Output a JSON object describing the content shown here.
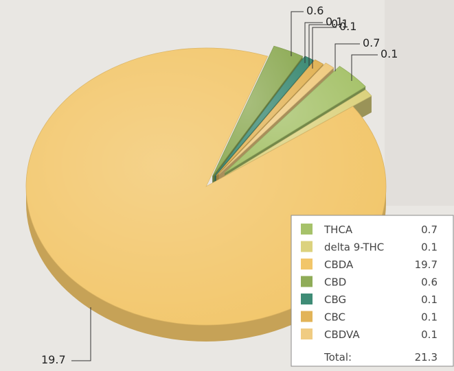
{
  "chart_data": {
    "type": "pie",
    "style": "3d-exploded",
    "categories": [
      "THCA",
      "delta 9-THC",
      "CBDA",
      "CBD",
      "CBG",
      "CBC",
      "CBDVA"
    ],
    "values": [
      0.7,
      0.1,
      19.7,
      0.6,
      0.1,
      0.1,
      0.1
    ],
    "value_labels": [
      "0.7",
      "0.1",
      "19.7",
      "0.6",
      "0.1",
      "0.1",
      "0.1"
    ],
    "colors": [
      "#a6c26a",
      "#dcd27e",
      "#f2c66a",
      "#8fac58",
      "#3f8c76",
      "#e2b458",
      "#f0cc82"
    ],
    "legend": {
      "placement": "bottom-right",
      "total_label": "Total:",
      "total_value": "21.3"
    }
  }
}
